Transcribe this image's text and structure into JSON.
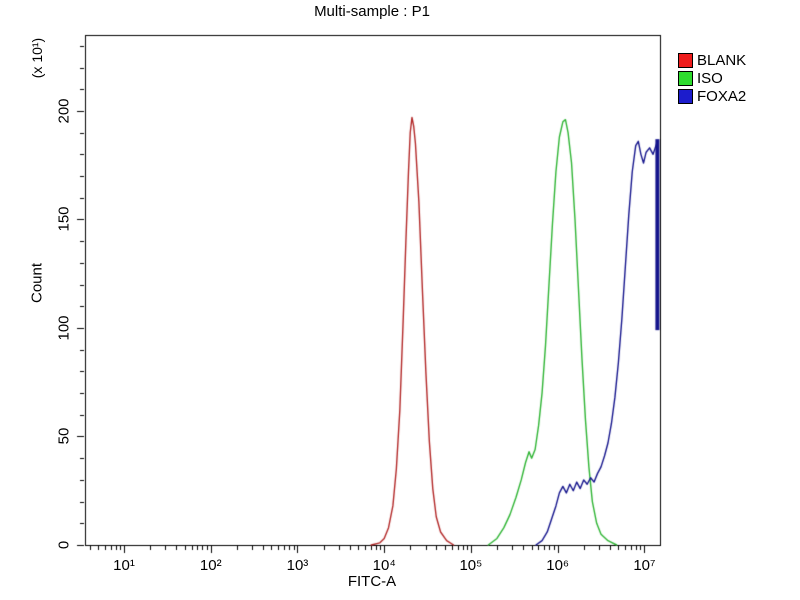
{
  "title": "Multi-sample : P1",
  "axis": {
    "x_label": "FITC-A",
    "y_label": "Count",
    "y_unit": "(x 10¹)"
  },
  "legend": {
    "position": "right",
    "items": [
      {
        "label": "BLANK",
        "color": "#ee1c1c"
      },
      {
        "label": "ISO",
        "color": "#2ddc2d"
      },
      {
        "label": "FOXA2",
        "color": "#1c1ccc"
      }
    ]
  },
  "chart_data": {
    "type": "line",
    "title": "Multi-sample : P1",
    "xlabel": "FITC-A",
    "ylabel": "Count",
    "ylabel_unit": "(x 10¹)",
    "x_scale": "log10",
    "x_range_log": [
      0.55,
      7.18
    ],
    "x_tick_exponents": [
      1,
      2,
      3,
      4,
      5,
      6,
      7
    ],
    "x_tick_labels": [
      "10¹",
      "10²",
      "10³",
      "10⁴",
      "10⁵",
      "10⁶",
      "10⁷"
    ],
    "y_range": [
      0,
      235
    ],
    "y_ticks": [
      0,
      50,
      100,
      150,
      200
    ],
    "y_minor_step": 10,
    "grid": false,
    "legend_position": "right",
    "series": [
      {
        "name": "BLANK",
        "color": "#b22727",
        "peak": {
          "x": 21000,
          "count": 197
        },
        "points": [
          [
            3.85,
            0
          ],
          [
            3.95,
            1
          ],
          [
            4.0,
            3
          ],
          [
            4.05,
            8
          ],
          [
            4.1,
            18
          ],
          [
            4.14,
            35
          ],
          [
            4.18,
            62
          ],
          [
            4.22,
            105
          ],
          [
            4.25,
            140
          ],
          [
            4.28,
            172
          ],
          [
            4.3,
            190
          ],
          [
            4.32,
            197
          ],
          [
            4.34,
            193
          ],
          [
            4.36,
            185
          ],
          [
            4.4,
            158
          ],
          [
            4.44,
            118
          ],
          [
            4.48,
            80
          ],
          [
            4.52,
            48
          ],
          [
            4.56,
            26
          ],
          [
            4.6,
            13
          ],
          [
            4.65,
            6
          ],
          [
            4.72,
            2
          ],
          [
            4.8,
            0
          ]
        ]
      },
      {
        "name": "ISO",
        "color": "#2eb433",
        "peak": {
          "x": 1200000,
          "count": 196
        },
        "points": [
          [
            5.2,
            0
          ],
          [
            5.3,
            3
          ],
          [
            5.38,
            8
          ],
          [
            5.45,
            14
          ],
          [
            5.52,
            22
          ],
          [
            5.58,
            30
          ],
          [
            5.63,
            38
          ],
          [
            5.67,
            43
          ],
          [
            5.7,
            40
          ],
          [
            5.74,
            44
          ],
          [
            5.78,
            55
          ],
          [
            5.82,
            70
          ],
          [
            5.86,
            92
          ],
          [
            5.9,
            120
          ],
          [
            5.94,
            148
          ],
          [
            5.98,
            172
          ],
          [
            6.02,
            188
          ],
          [
            6.06,
            195
          ],
          [
            6.09,
            196
          ],
          [
            6.12,
            190
          ],
          [
            6.16,
            176
          ],
          [
            6.2,
            150
          ],
          [
            6.24,
            118
          ],
          [
            6.28,
            86
          ],
          [
            6.32,
            58
          ],
          [
            6.36,
            36
          ],
          [
            6.4,
            20
          ],
          [
            6.45,
            10
          ],
          [
            6.5,
            5
          ],
          [
            6.58,
            2
          ],
          [
            6.68,
            0
          ]
        ]
      },
      {
        "name": "FOXA2",
        "color": "#14148c",
        "peak": {
          "x": 8000000,
          "count": 186
        },
        "points": [
          [
            5.75,
            0
          ],
          [
            5.82,
            2
          ],
          [
            5.88,
            6
          ],
          [
            5.93,
            12
          ],
          [
            5.98,
            18
          ],
          [
            6.02,
            24
          ],
          [
            6.06,
            27
          ],
          [
            6.1,
            24
          ],
          [
            6.14,
            28
          ],
          [
            6.18,
            25
          ],
          [
            6.22,
            29
          ],
          [
            6.26,
            26
          ],
          [
            6.3,
            30
          ],
          [
            6.34,
            28
          ],
          [
            6.38,
            31
          ],
          [
            6.42,
            29
          ],
          [
            6.46,
            33
          ],
          [
            6.5,
            36
          ],
          [
            6.54,
            41
          ],
          [
            6.58,
            47
          ],
          [
            6.62,
            56
          ],
          [
            6.66,
            68
          ],
          [
            6.7,
            84
          ],
          [
            6.74,
            104
          ],
          [
            6.78,
            128
          ],
          [
            6.82,
            152
          ],
          [
            6.86,
            172
          ],
          [
            6.9,
            184
          ],
          [
            6.93,
            186
          ],
          [
            6.96,
            180
          ],
          [
            6.99,
            176
          ],
          [
            7.02,
            181
          ],
          [
            7.06,
            183
          ],
          [
            7.1,
            180
          ],
          [
            7.15,
            186
          ],
          [
            7.15,
            100
          ]
        ],
        "right_edge_bar": {
          "log_x": 7.15,
          "count_from": 99,
          "count_to": 187,
          "thickness": 4
        }
      }
    ]
  }
}
